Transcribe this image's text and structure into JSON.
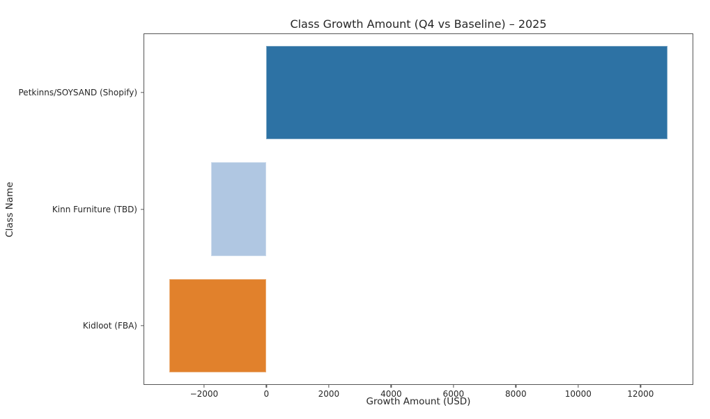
{
  "chart_data": {
    "type": "bar",
    "orientation": "horizontal",
    "title": "Class Growth Amount (Q4 vs Baseline) – 2025",
    "xlabel": "Growth Amount (USD)",
    "ylabel": "Class Name",
    "categories": [
      "Petkinns/SOYSAND (Shopify)",
      "Kinn Furniture (TBD)",
      "Kidloot (FBA)"
    ],
    "values": [
      12870,
      -1770,
      -3120
    ],
    "bar_colors": [
      "#2d72a4",
      "#b0c7e2",
      "#e1812c"
    ],
    "xlim": [
      -3920,
      13670
    ],
    "xticks": [
      -2000,
      0,
      2000,
      4000,
      6000,
      8000,
      10000,
      12000
    ],
    "xtick_labels": [
      "−2000",
      "0",
      "2000",
      "4000",
      "6000",
      "8000",
      "10000",
      "12000"
    ],
    "bar_height_fraction": 0.8,
    "grid": false,
    "legend_position": "none"
  },
  "colors": {
    "background": "#ffffff",
    "spine": "#555555",
    "text": "#262626"
  }
}
